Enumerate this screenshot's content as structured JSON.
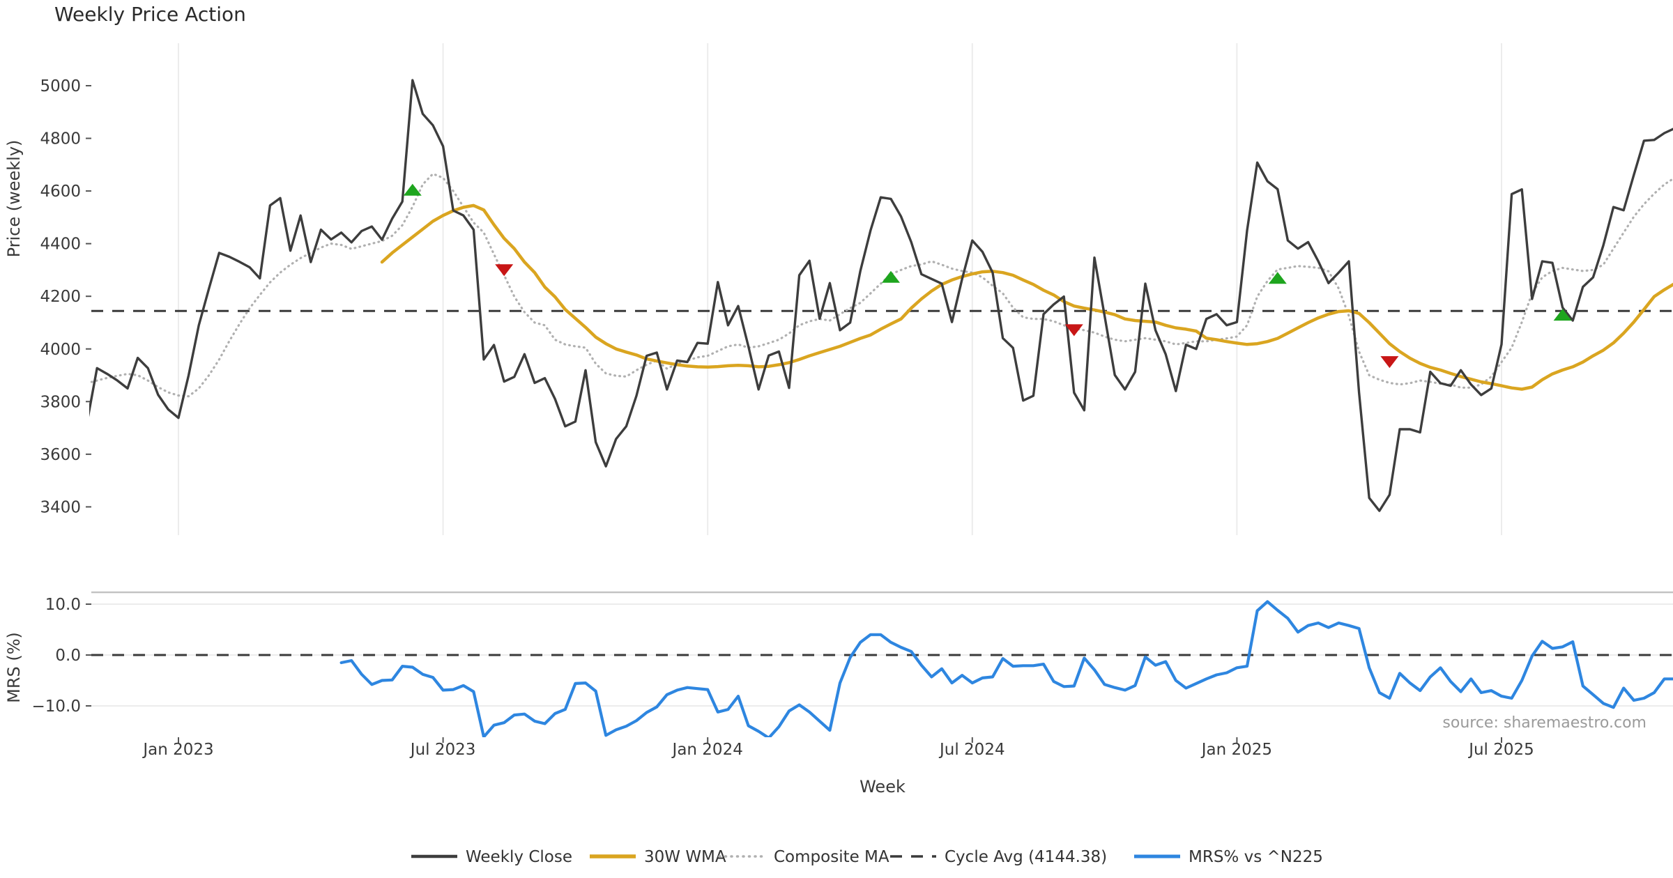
{
  "title": "Weekly Price Action",
  "watermark": "source: sharemaestro.com",
  "chart_data": {
    "type": "line",
    "x_unit": "week_index",
    "xlabel": "Week",
    "xticks": {
      "weeks": [
        9,
        35,
        61,
        87,
        113,
        139
      ],
      "labels": [
        "Jan 2023",
        "Jul 2023",
        "Jan 2024",
        "Jul 2024",
        "Jan 2025",
        "Jul 2025"
      ]
    },
    "legend": [
      {
        "label": "Weekly Close",
        "color": "#3d3d3d",
        "style": "solid"
      },
      {
        "label": "30W WMA",
        "color": "#DAA520",
        "style": "solid"
      },
      {
        "label": "Composite MA",
        "color": "#b0b0b0",
        "style": "dotted"
      },
      {
        "label": "Cycle Avg (4144.38)",
        "color": "#3a3a3a",
        "style": "dashed"
      },
      {
        "label": "MRS% vs ^N225",
        "color": "#2E86E0",
        "style": "solid"
      }
    ],
    "panels": [
      {
        "name": "price",
        "ylabel": "Price (weekly)",
        "ylim": [
          3330,
          5120
        ],
        "yticks": {
          "values": [
            5000,
            4800,
            4600,
            4400,
            4200,
            4000,
            3800,
            3600,
            3400
          ],
          "labels": [
            "5000",
            "4800",
            "4600",
            "4400",
            "4200",
            "4000",
            "3800",
            "3600",
            "3400"
          ]
        },
        "cycle_avg": 4144.38,
        "series": [
          {
            "name": "Weekly Close",
            "color": "#3d3d3d",
            "style": "solid",
            "x_start": 0,
            "values": [
              3717,
              3927,
              3905,
              3880,
              3850,
              3966,
              3927,
              3826,
              3770,
              3738,
              3900,
              4090,
              4230,
              4365,
              4350,
              4331,
              4310,
              4268,
              4545,
              4573,
              4373,
              4507,
              4330,
              4453,
              4416,
              4442,
              4405,
              4448,
              4465,
              4415,
              4495,
              4560,
              5021,
              4893,
              4850,
              4770,
              4526,
              4507,
              4453,
              3960,
              4015,
              3876,
              3894,
              3980,
              3871,
              3889,
              3810,
              3706,
              3724,
              3919,
              3646,
              3554,
              3658,
              3706,
              3822,
              3974,
              3986,
              3846,
              3956,
              3950,
              4023,
              4020,
              4254,
              4090,
              4163,
              4010,
              3846,
              3975,
              3990,
              3852,
              4280,
              4335,
              4115,
              4250,
              4071,
              4100,
              4296,
              4450,
              4576,
              4570,
              4503,
              4406,
              4284,
              4266,
              4248,
              4102,
              4266,
              4412,
              4369,
              4290,
              4041,
              4004,
              3804,
              3822,
              4132,
              4169,
              4199,
              3834,
              3767,
              4347,
              4126,
              3901,
              3846,
              3913,
              4248,
              4071,
              3980,
              3840,
              4016,
              4000,
              4114,
              4132,
              4090,
              4102,
              4450,
              4708,
              4637,
              4607,
              4412,
              4381,
              4406,
              4333,
              4250,
              4290,
              4333,
              3835,
              3434,
              3385,
              3446,
              3695,
              3695,
              3683,
              3913,
              3870,
              3860,
              3919,
              3865,
              3825,
              3850,
              4017,
              4588,
              4606,
              4190,
              4333,
              4327,
              4157,
              4108,
              4236,
              4272,
              4393,
              4539,
              4527,
              4661,
              4791,
              4794,
              4820,
              4838,
              4842
            ]
          },
          {
            "name": "30W WMA",
            "color": "#DAA520",
            "style": "solid",
            "x_start": 29,
            "values": [
              4330,
              4365,
              4395,
              4425,
              4455,
              4485,
              4507,
              4525,
              4538,
              4545,
              4528,
              4472,
              4420,
              4381,
              4330,
              4290,
              4235,
              4198,
              4150,
              4116,
              4082,
              4045,
              4020,
              4000,
              3988,
              3977,
              3962,
              3954,
              3947,
              3940,
              3935,
              3932,
              3931,
              3933,
              3936,
              3938,
              3936,
              3932,
              3934,
              3940,
              3948,
              3960,
              3974,
              3986,
              3998,
              4010,
              4025,
              4040,
              4053,
              4075,
              4095,
              4114,
              4155,
              4190,
              4220,
              4245,
              4262,
              4275,
              4285,
              4293,
              4295,
              4290,
              4280,
              4262,
              4245,
              4223,
              4205,
              4180,
              4163,
              4155,
              4148,
              4140,
              4130,
              4114,
              4108,
              4105,
              4102,
              4090,
              4080,
              4075,
              4068,
              4041,
              4035,
              4028,
              4022,
              4017,
              4020,
              4028,
              4040,
              4060,
              4080,
              4100,
              4118,
              4132,
              4142,
              4145,
              4135,
              4100,
              4060,
              4020,
              3990,
              3965,
              3945,
              3930,
              3920,
              3907,
              3895,
              3885,
              3875,
              3868,
              3860,
              3852,
              3847,
              3855,
              3883,
              3905,
              3920,
              3932,
              3950,
              3974,
              3995,
              4023,
              4060,
              4102,
              4150,
              4199,
              4225,
              4248
            ]
          },
          {
            "name": "Composite MA",
            "color": "#b0b0b0",
            "style": "dotted",
            "x_start": 0,
            "values": [
              3870,
              3880,
              3890,
              3898,
              3905,
              3900,
              3880,
              3855,
              3835,
              3823,
              3820,
              3850,
              3900,
              3960,
              4030,
              4095,
              4155,
              4205,
              4253,
              4290,
              4320,
              4345,
              4365,
              4385,
              4400,
              4395,
              4380,
              4390,
              4400,
              4410,
              4430,
              4470,
              4540,
              4625,
              4665,
              4650,
              4600,
              4540,
              4480,
              4442,
              4360,
              4280,
              4199,
              4140,
              4100,
              4090,
              4035,
              4017,
              4010,
              4005,
              3944,
              3907,
              3898,
              3895,
              3919,
              3940,
              3956,
              3925,
              3944,
              3956,
              3968,
              3974,
              3992,
              4010,
              4017,
              4005,
              4010,
              4022,
              4035,
              4059,
              4090,
              4105,
              4114,
              4108,
              4132,
              4155,
              4175,
              4211,
              4248,
              4284,
              4300,
              4315,
              4321,
              4333,
              4320,
              4305,
              4296,
              4290,
              4272,
              4240,
              4211,
              4157,
              4120,
              4114,
              4114,
              4105,
              4090,
              4078,
              4071,
              4062,
              4047,
              4035,
              4029,
              4035,
              4041,
              4035,
              4029,
              4017,
              4023,
              4029,
              4029,
              4035,
              4040,
              4047,
              4090,
              4199,
              4258,
              4302,
              4308,
              4315,
              4312,
              4308,
              4295,
              4230,
              4126,
              3990,
              3900,
              3883,
              3871,
              3865,
              3870,
              3880,
              3875,
              3868,
              3865,
              3853,
              3853,
              3865,
              3895,
              3950,
              4005,
              4102,
              4211,
              4272,
              4296,
              4308,
              4302,
              4296,
              4300,
              4320,
              4381,
              4442,
              4502,
              4550,
              4590,
              4625,
              4650
            ]
          }
        ],
        "markers": {
          "buy": {
            "shape": "triangle-up",
            "color": "#1EA51E",
            "points": [
              [
                32,
                4605
              ],
              [
                79,
                4274
              ],
              [
                117,
                4270
              ],
              [
                145,
                4130
              ]
            ]
          },
          "sell": {
            "shape": "triangle-down",
            "color": "#C81616",
            "points": [
              [
                41,
                4299
              ],
              [
                97,
                4071
              ],
              [
                128,
                3950
              ]
            ]
          }
        }
      },
      {
        "name": "mrs",
        "ylabel": "MRS (%)",
        "ylim": [
          -16.5,
          12.3
        ],
        "yticks": {
          "values": [
            10,
            0,
            -10
          ],
          "labels": [
            "10.0",
            "0.0",
            "−10.0"
          ]
        },
        "zero_line": 0,
        "series": [
          {
            "name": "MRS% vs ^N225",
            "color": "#2E86E0",
            "style": "solid",
            "x_start": 25,
            "values": [
              -1.5,
              -1.1,
              -3.8,
              -5.8,
              -5.0,
              -4.9,
              -2.2,
              -2.4,
              -3.8,
              -4.4,
              -6.9,
              -6.8,
              -6.0,
              -7.2,
              -16.1,
              -13.8,
              -13.3,
              -11.8,
              -11.6,
              -13.0,
              -13.5,
              -11.5,
              -10.7,
              -5.6,
              -5.5,
              -7.1,
              -15.8,
              -14.7,
              -14.0,
              -12.9,
              -11.3,
              -10.2,
              -7.8,
              -6.9,
              -6.4,
              -6.6,
              -6.8,
              -11.2,
              -10.7,
              -8.1,
              -13.9,
              -15.0,
              -16.3,
              -14.1,
              -11.0,
              -9.8,
              -11.2,
              -13.0,
              -14.8,
              -5.5,
              -0.5,
              2.5,
              4.0,
              4.0,
              2.5,
              1.5,
              0.7,
              -2.0,
              -4.3,
              -2.7,
              -5.5,
              -4.0,
              -5.5,
              -4.5,
              -4.3,
              -0.7,
              -2.2,
              -2.1,
              -2.1,
              -1.8,
              -5.2,
              -6.2,
              -6.1,
              -0.6,
              -2.9,
              -5.8,
              -6.4,
              -6.9,
              -6.0,
              -0.4,
              -2.0,
              -1.3,
              -5.0,
              -6.5,
              -5.6,
              -4.7,
              -3.9,
              -3.5,
              -2.5,
              -2.2,
              8.7,
              10.5,
              8.8,
              7.2,
              4.5,
              5.8,
              6.3,
              5.4,
              6.3,
              5.8,
              5.2,
              -2.5,
              -7.4,
              -8.5,
              -3.6,
              -5.5,
              -7.0,
              -4.3,
              -2.5,
              -5.2,
              -7.2,
              -4.7,
              -7.4,
              -7.0,
              -8.1,
              -8.5,
              -5.0,
              -0.2,
              2.7,
              1.3,
              1.6,
              2.6,
              -6.1,
              -7.8,
              -9.5,
              -10.3,
              -6.5,
              -8.9,
              -8.5,
              -7.4,
              -4.7,
              -4.7
            ]
          }
        ]
      }
    ]
  }
}
